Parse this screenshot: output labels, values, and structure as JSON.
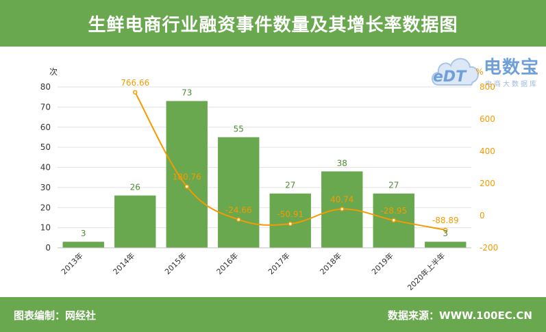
{
  "header": {
    "title": "生鲜电商行业融资事件数量及其增长率数据图"
  },
  "footer": {
    "left": "图表编制：网经社",
    "right": "数据来源：WWW.100EC.CN"
  },
  "logo": {
    "brand": "电数宝",
    "edt": "eDT",
    "tagline": "电商大数据库",
    "icon": "cloud-icon"
  },
  "colors": {
    "bar": "#6aa84f",
    "line": "#f59a00",
    "header": "#6aa84f"
  },
  "chart_data": {
    "type": "bar",
    "categories": [
      "2013年",
      "2014年",
      "2015年",
      "2016年",
      "2017年",
      "2018年",
      "2019年",
      "2020年上半年"
    ],
    "series": [
      {
        "values": [
          3,
          26,
          73,
          55,
          27,
          38,
          27,
          3
        ]
      },
      {
        "type": "line",
        "axis": "right",
        "values": [
          null,
          766.66,
          180.76,
          -24.66,
          -50.91,
          40.74,
          -28.95,
          -88.89
        ]
      }
    ],
    "ylabel": "次",
    "ylabel_right": "%",
    "ylim": [
      0,
      80
    ],
    "yticks": [
      0,
      10,
      20,
      30,
      40,
      50,
      60,
      70,
      80
    ],
    "ylim_right": [
      -200,
      800
    ],
    "yticks_right": [
      -200,
      0,
      200,
      400,
      600,
      800
    ],
    "grid": true
  }
}
